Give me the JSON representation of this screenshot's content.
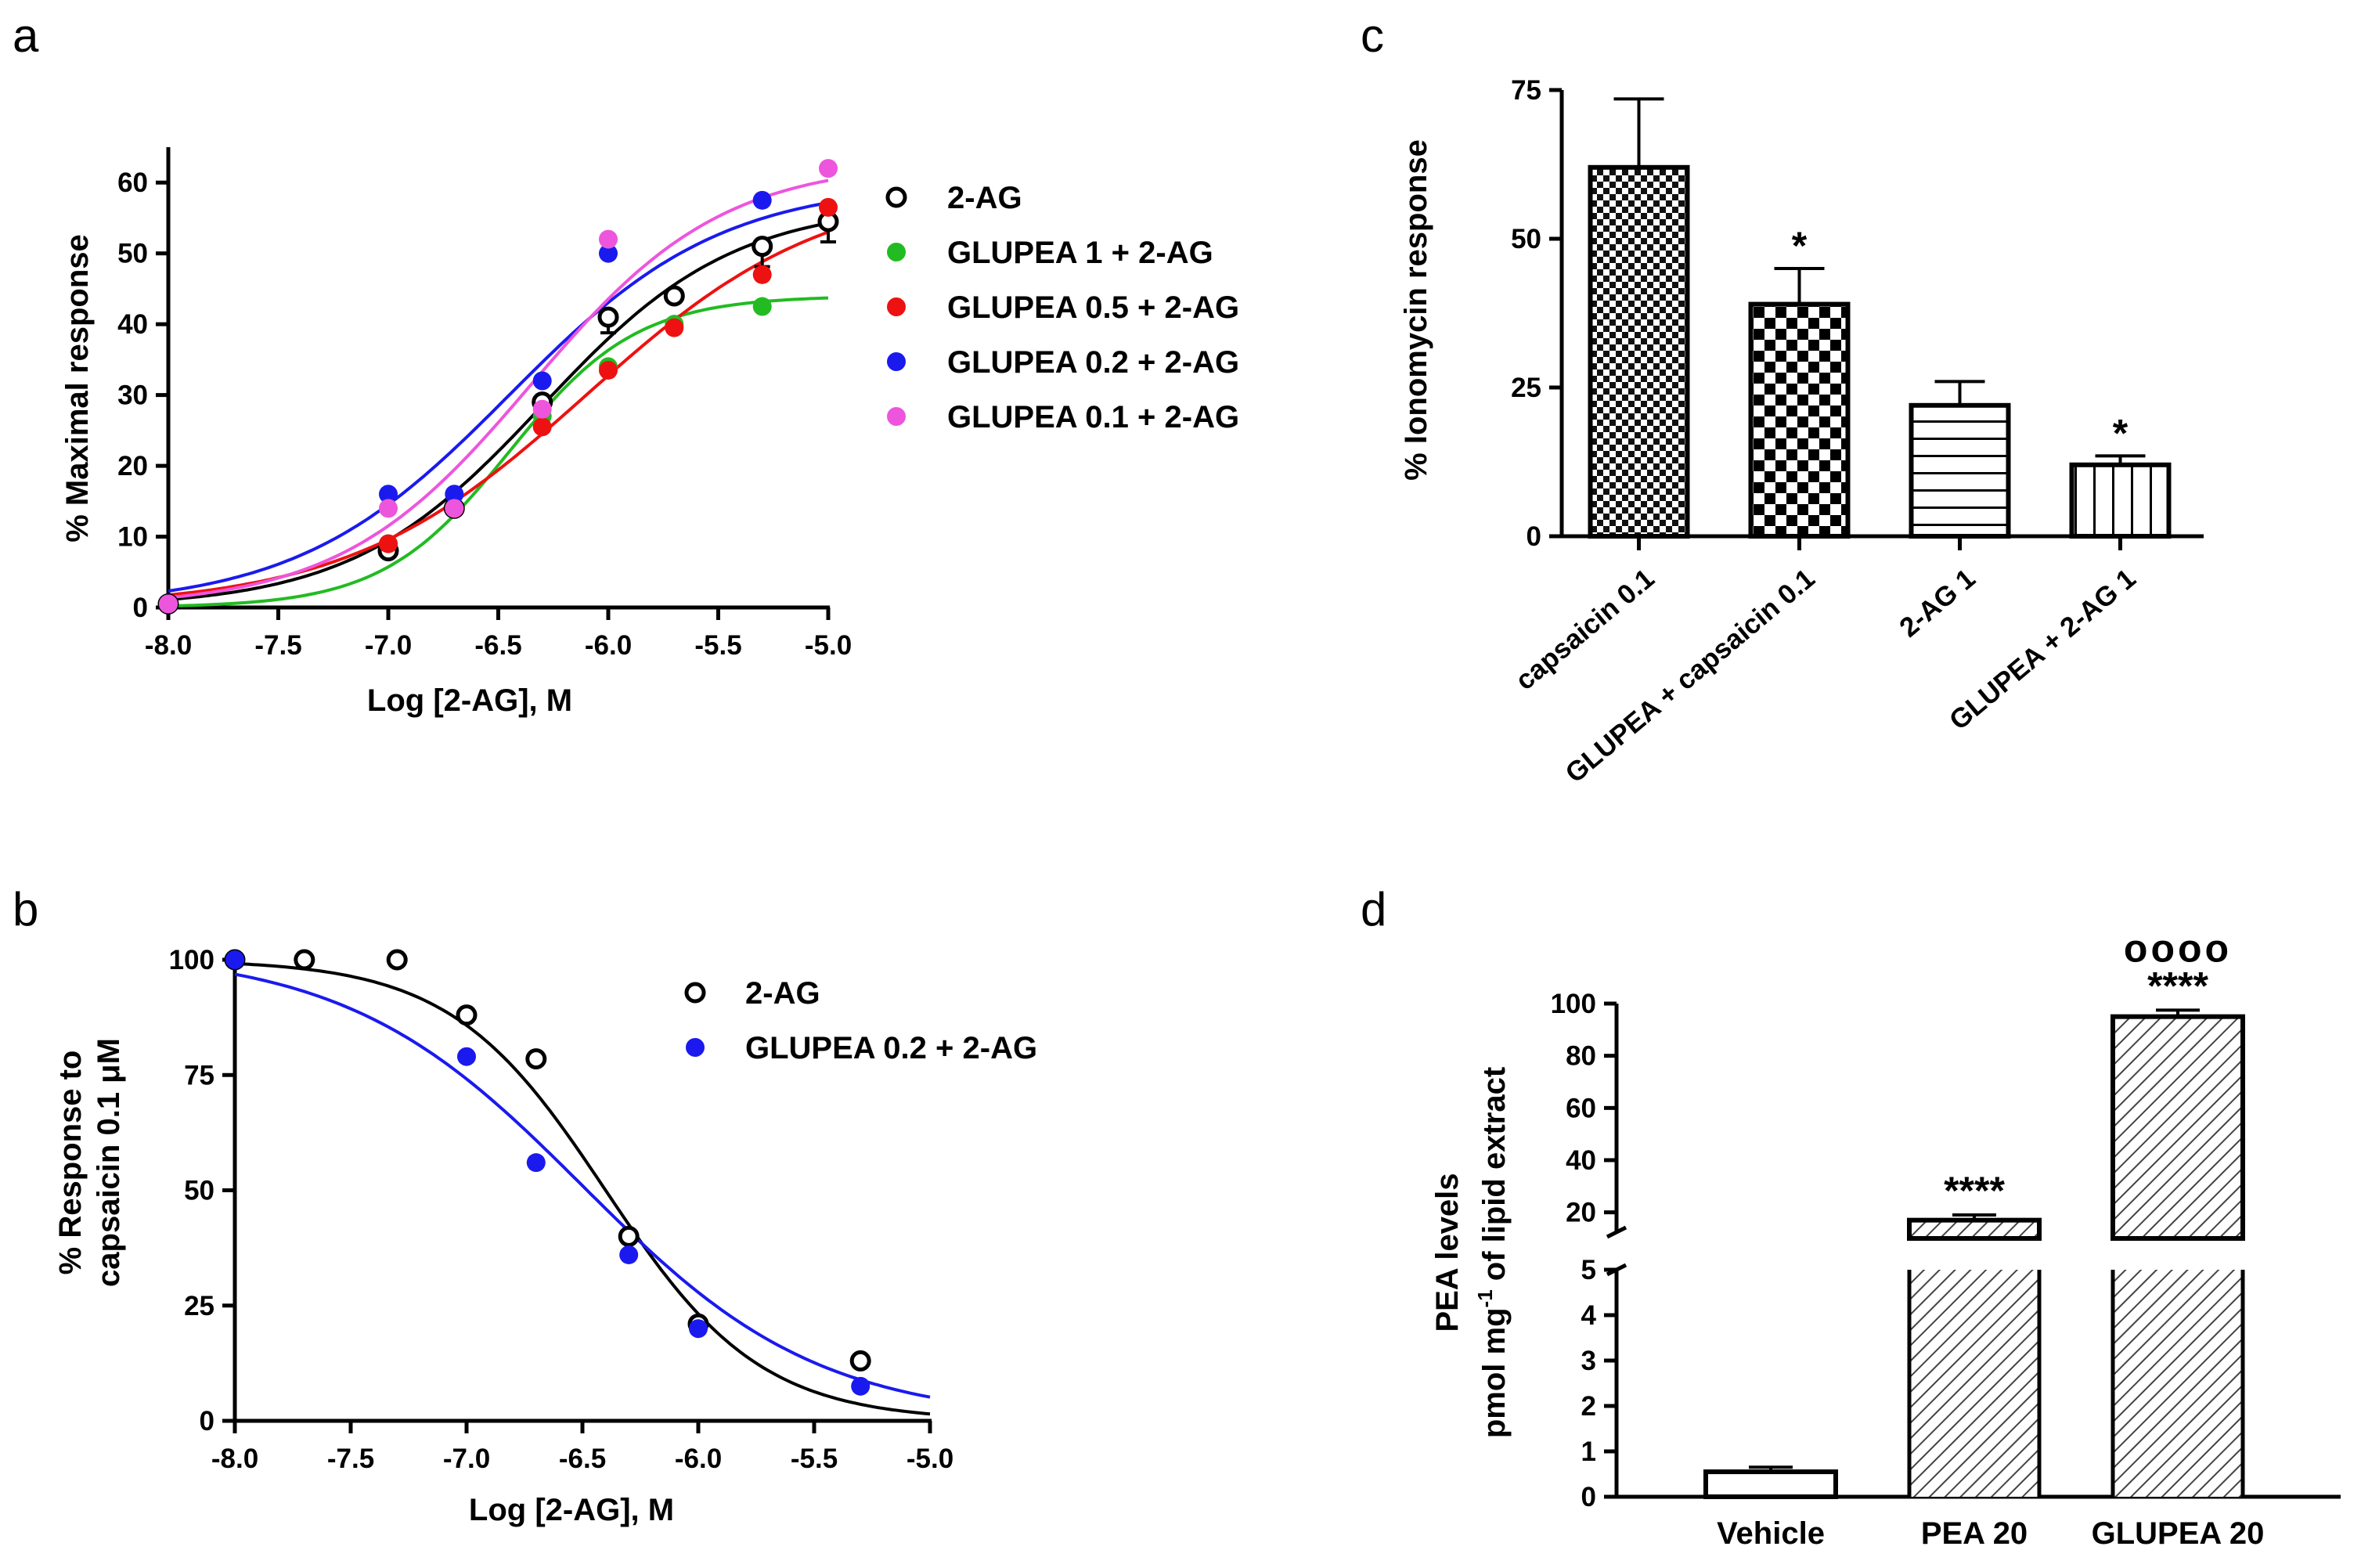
{
  "chart_data": [
    {
      "panel": "a",
      "type": "scatter",
      "xlabel": "Log [2-AG], M",
      "ylabel": "% Maximal response",
      "xlim": [
        -8.0,
        -5.0
      ],
      "ylim": [
        0,
        65
      ],
      "xticks": [
        -8.0,
        -7.5,
        -7.0,
        -6.5,
        -6.0,
        -5.5,
        -5.0
      ],
      "xtick_labels": [
        "-8.0",
        "-7.5",
        "-7.0",
        "-6.5",
        "-6.0",
        "-5.5",
        "-5.0"
      ],
      "yticks": [
        0,
        10,
        20,
        30,
        40,
        50,
        60
      ],
      "ytick_labels": [
        "0",
        "10",
        "20",
        "30",
        "40",
        "50",
        "60"
      ],
      "legend_position": "right",
      "series": [
        {
          "name": "2-AG",
          "color": "#000000",
          "marker": "open-circle",
          "x": [
            -8.0,
            -7.0,
            -6.7,
            -6.3,
            -6.0,
            -5.7,
            -5.3,
            -5.0
          ],
          "y": [
            0.5,
            8,
            14,
            29,
            41,
            44,
            51,
            54.5
          ],
          "fit": {
            "bottom": 0,
            "top": 57,
            "logec50": -6.3,
            "hill": 1.0
          }
        },
        {
          "name": "GLUPEA 1 + 2-AG",
          "color": "#22bb22",
          "marker": "filled-circle",
          "x": [
            -8.0,
            -7.0,
            -6.7,
            -6.3,
            -6.0,
            -5.7,
            -5.3
          ],
          "y": [
            0.5,
            9,
            14,
            27,
            34,
            40,
            42.5
          ],
          "fit": {
            "bottom": 0,
            "top": 44,
            "logec50": -6.45,
            "hill": 1.5
          }
        },
        {
          "name": "GLUPEA 0.5 + 2-AG",
          "color": "#ee1111",
          "marker": "filled-circle",
          "x": [
            -8.0,
            -7.0,
            -6.7,
            -6.3,
            -6.0,
            -5.7,
            -5.3,
            -5.0
          ],
          "y": [
            0.5,
            9,
            14,
            25.5,
            33.5,
            39.5,
            47,
            56.5
          ],
          "fit": {
            "bottom": 0,
            "top": 60,
            "logec50": -6.1,
            "hill": 0.8
          }
        },
        {
          "name": "GLUPEA 0.2 + 2-AG",
          "color": "#1a1aee",
          "marker": "filled-circle",
          "x": [
            -8.0,
            -7.0,
            -6.7,
            -6.3,
            -6.0,
            -5.3
          ],
          "y": [
            0.5,
            16,
            16,
            32,
            50,
            57.5
          ],
          "fit": {
            "bottom": 0,
            "top": 60,
            "logec50": -6.45,
            "hill": 0.9
          }
        },
        {
          "name": "GLUPEA 0.1 + 2-AG",
          "color": "#ee55dd",
          "marker": "filled-circle",
          "x": [
            -8.0,
            -7.0,
            -6.7,
            -6.3,
            -6.0,
            -5.0
          ],
          "y": [
            0.5,
            14,
            14,
            28,
            52,
            62
          ],
          "fit": {
            "bottom": 0,
            "top": 63,
            "logec50": -6.35,
            "hill": 1.0
          }
        }
      ]
    },
    {
      "panel": "b",
      "type": "scatter",
      "xlabel": "Log [2-AG], M",
      "ylabel_line1": "% Response to",
      "ylabel_line2": "capsaicin 0.1 μM",
      "xlim": [
        -8.0,
        -5.0
      ],
      "ylim": [
        0,
        100
      ],
      "xticks": [
        -8.0,
        -7.5,
        -7.0,
        -6.5,
        -6.0,
        -5.5,
        -5.0
      ],
      "xtick_labels": [
        "-8.0",
        "-7.5",
        "-7.0",
        "-6.5",
        "-6.0",
        "-5.5",
        "-5.0"
      ],
      "yticks": [
        0,
        25,
        50,
        75,
        100
      ],
      "ytick_labels": [
        "0",
        "25",
        "50",
        "75",
        "100"
      ],
      "legend_position": "top-right",
      "series": [
        {
          "name": "2-AG",
          "color": "#000000",
          "marker": "open-circle",
          "x": [
            -8.0,
            -7.7,
            -7.3,
            -7.0,
            -6.7,
            -6.3,
            -6.0,
            -5.3
          ],
          "y": [
            100,
            100,
            100,
            88,
            78.5,
            40,
            21,
            13
          ],
          "fit": {
            "top": 100,
            "bottom": 0,
            "logic50": -6.4,
            "hill": 1.3
          }
        },
        {
          "name": "GLUPEA 0.2 + 2-AG",
          "color": "#1a1aee",
          "marker": "filled-circle",
          "x": [
            -8.0,
            -7.0,
            -6.7,
            -6.3,
            -6.0,
            -5.3
          ],
          "y": [
            100,
            79,
            56,
            36,
            20,
            7.5
          ],
          "fit": {
            "top": 102,
            "bottom": 0,
            "logic50": -6.5,
            "hill": 0.85
          }
        }
      ]
    },
    {
      "panel": "c",
      "type": "bar",
      "ylabel": "% Ionomycin response",
      "ylim": [
        0,
        75
      ],
      "yticks": [
        0,
        25,
        50,
        75
      ],
      "ytick_labels": [
        "0",
        "25",
        "50",
        "75"
      ],
      "categories": [
        "capsaicin 0.1",
        "GLUPEA + capsaicin 0.1",
        "2-AG 1",
        "GLUPEA + 2-AG 1"
      ],
      "values": [
        62,
        39,
        22,
        12
      ],
      "errors": [
        11.5,
        6,
        4,
        1.5
      ],
      "patterns": [
        "checker-fine",
        "checker-coarse",
        "horizontal-lines",
        "vertical-lines"
      ],
      "annotations": [
        "",
        "*",
        "",
        "*"
      ]
    },
    {
      "panel": "d",
      "type": "bar",
      "ylabel_line1": "PEA levels",
      "ylabel_line2": "pmol mg",
      "ylabel_sup": "-1",
      "ylabel_line2_rest": " of lipid extract",
      "axis_break": true,
      "lower_ylim": [
        0,
        5
      ],
      "lower_yticks": [
        0,
        1,
        2,
        3,
        4,
        5
      ],
      "lower_ytick_labels": [
        "0",
        "1",
        "2",
        "3",
        "4",
        "5"
      ],
      "upper_ylim": [
        10,
        100
      ],
      "upper_yticks": [
        20,
        40,
        60,
        80,
        100
      ],
      "upper_ytick_labels": [
        "20",
        "40",
        "60",
        "80",
        "100"
      ],
      "categories": [
        "Vehicle",
        "PEA 20",
        "GLUPEA 20"
      ],
      "values": [
        0.55,
        17,
        95
      ],
      "errors": [
        0.1,
        2,
        2.5
      ],
      "patterns": [
        "none",
        "diagonal-lines",
        "diagonal-lines"
      ],
      "annotations_upper": [
        "",
        "",
        "oooo"
      ],
      "annotations": [
        "",
        "****",
        "****"
      ]
    }
  ]
}
